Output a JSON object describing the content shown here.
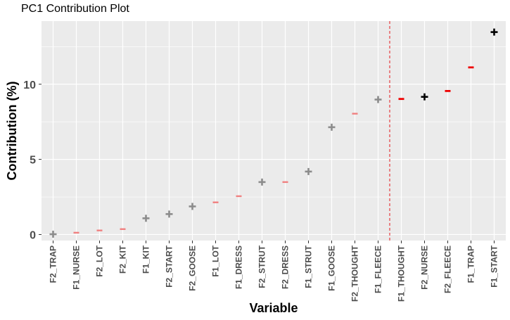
{
  "chart_data": {
    "type": "scatter",
    "title": "PC1 Contribution Plot",
    "xlabel": "Variable",
    "ylabel": "Contribution (%)",
    "ylim": [
      -0.4,
      14.2
    ],
    "yticks": [
      0,
      5,
      10
    ],
    "categories": [
      "F2_TRAP",
      "F1_NURSE",
      "F2_LOT",
      "F2_KIT",
      "F1_KIT",
      "F2_START",
      "F2_GOOSE",
      "F1_LOT",
      "F1_DRESS",
      "F2_STRUT",
      "F2_DRESS",
      "F1_STRUT",
      "F1_GOOSE",
      "F2_THOUGHT",
      "F1_FLEECE",
      "F1_THOUGHT",
      "F2_NURSE",
      "F2_FLEECE",
      "F1_TRAP",
      "F1_START"
    ],
    "values": [
      0.02,
      0.12,
      0.27,
      0.36,
      1.08,
      1.36,
      1.87,
      2.14,
      2.55,
      3.49,
      3.49,
      4.19,
      7.14,
      8.04,
      8.98,
      9.02,
      9.16,
      9.55,
      11.12,
      13.47
    ],
    "markers": [
      "plus",
      "minus",
      "minus",
      "minus",
      "plus",
      "plus",
      "plus",
      "minus",
      "minus",
      "plus",
      "minus",
      "plus",
      "plus",
      "minus",
      "plus",
      "minus",
      "plus",
      "minus",
      "minus",
      "plus"
    ],
    "highlighted": [
      false,
      false,
      false,
      false,
      false,
      false,
      false,
      false,
      false,
      false,
      false,
      false,
      false,
      false,
      false,
      true,
      true,
      true,
      true,
      true
    ],
    "threshold_after_index": 14,
    "grid": true,
    "colors": {
      "panel": "#ebebeb",
      "grid": "#ffffff",
      "plus_normal": "#8c8c8c",
      "minus_normal": "#f08080",
      "plus_highlight": "#000000",
      "minus_highlight": "#ee0000",
      "threshold": "#e41a1c"
    }
  }
}
